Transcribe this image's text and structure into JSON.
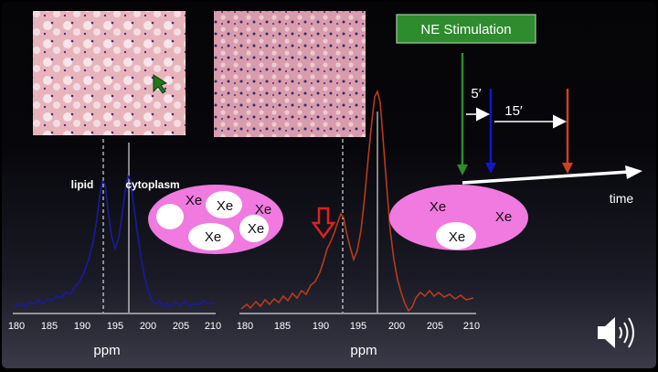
{
  "stimulation": {
    "label": "NE Stimulation"
  },
  "timeline": {
    "interval_1": "5′",
    "interval_2": "15′",
    "axis_label": "time"
  },
  "colors": {
    "green": "#2e8b2e",
    "blue": "#1515c8",
    "red": "#d04020",
    "ellipse": "#f07ae0",
    "spectrum_left": "#1a1aa0",
    "spectrum_right": "#b83a1c"
  },
  "left_panel": {
    "peak_labels": {
      "lipid": "lipid",
      "cytoplasm": "cytoplasm"
    },
    "xe_labels": [
      "Xe",
      "Xe",
      "Xe",
      "Xe",
      "Xe"
    ],
    "axis": {
      "ticks": [
        "180",
        "185",
        "190",
        "195",
        "200",
        "205",
        "210"
      ],
      "label": "ppm"
    }
  },
  "right_panel": {
    "xe_labels": [
      "Xe",
      "Xe",
      "Xe"
    ],
    "axis": {
      "ticks": [
        "180",
        "185",
        "190",
        "195",
        "200",
        "205",
        "210"
      ],
      "label": "ppm"
    }
  },
  "controls": {
    "audio": "speaker-icon"
  }
}
